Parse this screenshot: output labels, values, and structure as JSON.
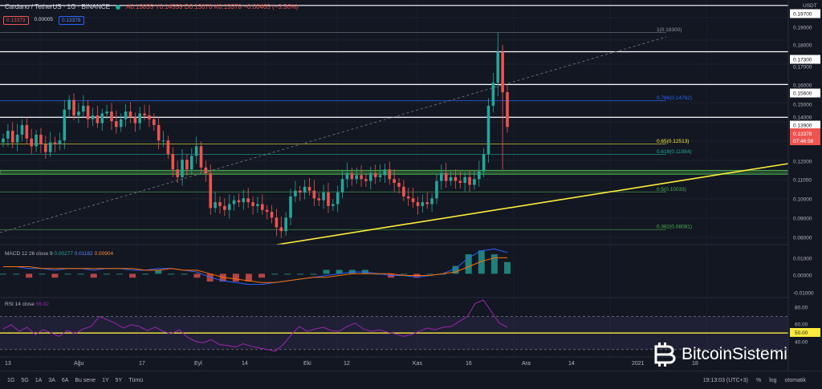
{
  "header": {
    "symbol": "Cardano / TetherUS · 1G · BINANCE",
    "ohlc": "A0.13835 Y0.14559 D0.13070 K0.13378 −0.00465 (−3.36%)",
    "badge_bid": "0.13373",
    "badge_spread": "0.00005",
    "badge_ask": "0.13378"
  },
  "macd_label": {
    "name": "MACD 12 26 close 9",
    "v1": "0.00277",
    "v2": "0.01182",
    "v3": "0.00904",
    "colors": [
      "#26a69a",
      "#2962ff",
      "#ff6d00"
    ]
  },
  "rsi_label": {
    "name": "RSI 14 close",
    "value": "56.92"
  },
  "price_axis": {
    "unit": "USDT",
    "current_price": "0.13378",
    "countdown": "07:46:58",
    "rsi_marker": "50.00"
  },
  "bottom_bar": {
    "timeframes": [
      "1G",
      "5G",
      "1A",
      "3A",
      "6A",
      "Bu sene",
      "1Y",
      "5Y",
      "Tümü"
    ],
    "clock": "19:13:03 (UTC+3)",
    "percent": "%",
    "log": "log",
    "auto": "otomatik"
  },
  "watermark": "BitcoinSistemi",
  "colors": {
    "up": "#26a69a",
    "down": "#ef5350",
    "background": "#131722",
    "fib": "#ffeb3b",
    "zone": "#4caf50"
  },
  "chart_data": [
    {
      "type": "candlestick",
      "title": "Cardano / TetherUS 1G",
      "x_tick_labels": [
        "13",
        "Ağu",
        "17",
        "Eyl",
        "14",
        "Eki",
        "12",
        "Kas",
        "16",
        "Ara",
        "14",
        "2021",
        "18"
      ],
      "y_tick_labels": [
        "0.19700",
        "0.19000",
        "0.18000",
        "0.17300",
        "0.17000",
        "0.16000",
        "0.15600",
        "0.15000",
        "0.14000",
        "0.13900",
        "0.13000",
        "0.12000",
        "0.11000",
        "0.10000",
        "0.09000",
        "0.08000"
      ],
      "ylim": [
        0.073,
        0.199
      ],
      "horizontal_levels": [
        0.197,
        0.173,
        0.156,
        0.139
      ],
      "fibonacci_levels": [
        {
          "label": "1(0.18300)",
          "value": 0.183
        },
        {
          "label": "0.786(0.14762)",
          "value": 0.14762
        },
        {
          "label": "0.65(0.12513)",
          "value": 0.12513
        },
        {
          "label": "0.618(0.11984)",
          "value": 0.11984
        },
        {
          "label": "0.5(0.10033)",
          "value": 0.10033
        },
        {
          "label": "0.382(0.08081)",
          "value": 0.08081
        }
      ],
      "support_zone": [
        0.1095,
        0.1115
      ],
      "close_series_approx": [
        0.128,
        0.132,
        0.126,
        0.13,
        0.135,
        0.128,
        0.124,
        0.13,
        0.125,
        0.121,
        0.126,
        0.125,
        0.127,
        0.143,
        0.148,
        0.14,
        0.142,
        0.145,
        0.138,
        0.14,
        0.136,
        0.141,
        0.142,
        0.137,
        0.134,
        0.138,
        0.142,
        0.139,
        0.136,
        0.141,
        0.14,
        0.138,
        0.135,
        0.127,
        0.127,
        0.12,
        0.112,
        0.108,
        0.117,
        0.112,
        0.119,
        0.124,
        0.113,
        0.11,
        0.092,
        0.095,
        0.093,
        0.091,
        0.094,
        0.096,
        0.095,
        0.097,
        0.095,
        0.093,
        0.094,
        0.091,
        0.09,
        0.087,
        0.082,
        0.08,
        0.087,
        0.098,
        0.101,
        0.1,
        0.103,
        0.101,
        0.097,
        0.096,
        0.1,
        0.093,
        0.094,
        0.1,
        0.107,
        0.11,
        0.107,
        0.109,
        0.107,
        0.106,
        0.11,
        0.108,
        0.109,
        0.112,
        0.107,
        0.105,
        0.103,
        0.098,
        0.097,
        0.095,
        0.093,
        0.095,
        0.094,
        0.097,
        0.106,
        0.11,
        0.106,
        0.108,
        0.106,
        0.105,
        0.108,
        0.104,
        0.107,
        0.111,
        0.12,
        0.145,
        0.157,
        0.173,
        0.152,
        0.134
      ]
    },
    {
      "type": "bar",
      "title": "MACD 12 26 close 9",
      "y_tick_labels": [
        "0.01000",
        "0.00000",
        "-0.01000"
      ],
      "ylim": [
        -0.013,
        0.016
      ],
      "series": [
        {
          "name": "MACD",
          "values": [
            0.004,
            0.004,
            0.003,
            0.003,
            0.002,
            0.003,
            0.003,
            0.002,
            0.003,
            0.003,
            0.002,
            0.002,
            0.003,
            0.003,
            0.002,
            0.001,
            -0.002,
            -0.004,
            -0.005,
            -0.006,
            -0.006,
            -0.005,
            -0.004,
            -0.003,
            -0.002,
            -0.001,
            0.0,
            0.001,
            0.001,
            0.0,
            -0.001,
            -0.001,
            -0.002,
            -0.001,
            0.0,
            0.003,
            0.009,
            0.013,
            0.014,
            0.012
          ]
        },
        {
          "name": "Signal",
          "values": [
            0.004,
            0.004,
            0.004,
            0.003,
            0.003,
            0.003,
            0.003,
            0.003,
            0.003,
            0.003,
            0.003,
            0.002,
            0.002,
            0.003,
            0.002,
            0.002,
            0.0,
            -0.002,
            -0.003,
            -0.004,
            -0.005,
            -0.005,
            -0.004,
            -0.003,
            -0.002,
            -0.002,
            -0.001,
            0.0,
            0.0,
            0.0,
            0.0,
            -0.001,
            -0.001,
            -0.001,
            0.0,
            0.001,
            0.004,
            0.007,
            0.009,
            0.009
          ]
        }
      ]
    },
    {
      "type": "line",
      "title": "RSI 14 close",
      "y_tick_labels": [
        "80.00",
        "60.00",
        "40.00"
      ],
      "ylim": [
        22,
        92
      ],
      "series": [
        {
          "name": "RSI",
          "values": [
            55,
            60,
            52,
            57,
            48,
            54,
            50,
            46,
            53,
            49,
            55,
            58,
            70,
            66,
            62,
            56,
            60,
            58,
            53,
            57,
            52,
            49,
            54,
            45,
            40,
            38,
            42,
            36,
            35,
            33,
            37,
            34,
            32,
            30,
            28,
            36,
            48,
            58,
            52,
            55,
            57,
            53,
            52,
            58,
            62,
            55,
            52,
            54,
            51,
            49,
            46,
            48,
            52,
            56,
            54,
            57,
            58,
            64,
            70,
            86,
            90,
            76,
            62,
            57
          ]
        }
      ],
      "reference_levels": [
        70,
        50,
        30
      ]
    }
  ]
}
